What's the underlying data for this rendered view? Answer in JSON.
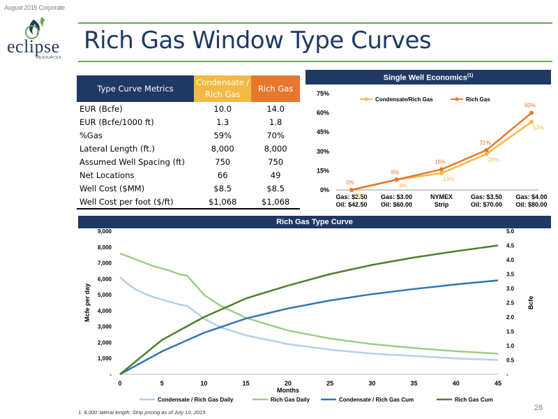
{
  "header": {
    "note": "August 2015 Corporate"
  },
  "logo": {
    "word": "eclipse",
    "sub": "RESOURCES"
  },
  "title": "Rich Gas Window Type Curves",
  "page_number": "26",
  "footnote": "1. 8,000' lateral length; Strip pricing as of July 10, 2015",
  "colors": {
    "navy": "#1f3864",
    "condensate_header": "#f4b942",
    "rich_header": "#e8772e",
    "green_rule": "#6aa84f"
  },
  "metrics_table": {
    "headers": [
      "Type Curve Metrics",
      "Condensate / Rich Gas",
      "Rich Gas"
    ],
    "rows": [
      {
        "label": "EUR (Bcfe)",
        "condensate": "10.0",
        "rich": "14.0"
      },
      {
        "label": "EUR (Bcfe/1000 ft)",
        "condensate": "1.3",
        "rich": "1.8"
      },
      {
        "label": "%Gas",
        "condensate": "59%",
        "rich": "70%"
      },
      {
        "label": "Lateral Length (ft.)",
        "condensate": "8,000",
        "rich": "8,000"
      },
      {
        "label": "Assumed Well Spacing (ft)",
        "condensate": "750",
        "rich": "750"
      },
      {
        "label": "Net Locations",
        "condensate": "66",
        "rich": "49"
      },
      {
        "label": "Well Cost ($MM)",
        "condensate": "$8.5",
        "rich": "$8.5"
      },
      {
        "label": "Well Cost per foot ($/ft)",
        "condensate": "$1,068",
        "rich": "$1,068"
      }
    ]
  },
  "chart_data": [
    {
      "type": "line",
      "title": "Single Well Economics",
      "title_sup": "(1)",
      "categories": [
        "Gas: $2.50\nOil: $42.50",
        "Gas: $3.00\nOil: $60.00",
        "NYMEX\nStrip",
        "Gas: $3.50\nOil: $70.00",
        "Gas: $4.00\nOil: $80.00"
      ],
      "series": [
        {
          "name": "Condensate/Rich Gas",
          "color": "#f4b942",
          "values": [
            0,
            8,
            13,
            28,
            53
          ],
          "labels": [
            "0%",
            "8%",
            "13%",
            "28%",
            "53%"
          ]
        },
        {
          "name": "Rich Gas",
          "color": "#e8772e",
          "values": [
            0,
            8,
            16,
            31,
            60
          ],
          "labels": [
            "0%",
            "8%",
            "16%",
            "31%",
            "60%"
          ]
        }
      ],
      "ylim": [
        0,
        75
      ],
      "yticks": [
        "0%",
        "15%",
        "30%",
        "45%",
        "60%",
        "75%"
      ],
      "legend": "top"
    },
    {
      "type": "line",
      "title": "Rich Gas Type Curve",
      "xlabel": "Months",
      "ylabel": "Mcfe per day",
      "y2label": "Bcfe",
      "xlim": [
        0,
        45
      ],
      "xticks": [
        "0",
        "5",
        "10",
        "15",
        "20",
        "25",
        "30",
        "35",
        "40",
        "45"
      ],
      "ylim": [
        0,
        9000
      ],
      "yticks": [
        "-",
        "1,000",
        "2,000",
        "3,000",
        "4,000",
        "5,000",
        "6,000",
        "7,000",
        "8,000",
        "9,000"
      ],
      "y2lim": [
        0,
        5
      ],
      "y2ticks": [
        "-",
        "0.5",
        "1.0",
        "1.5",
        "2.0",
        "2.5",
        "3.0",
        "3.5",
        "4.0",
        "4.5",
        "5.0"
      ],
      "legend": "bottom",
      "series": [
        {
          "name": "Condensate / Rich Gas Daily",
          "axis": "left",
          "color": "#b4cfe8",
          "x": [
            0,
            1,
            2,
            3,
            4,
            5,
            6,
            7,
            8,
            9,
            10,
            12,
            15,
            20,
            25,
            30,
            35,
            40,
            45
          ],
          "values": [
            6100,
            5650,
            5300,
            5050,
            4850,
            4700,
            4550,
            4400,
            4300,
            3900,
            3500,
            2950,
            2450,
            1900,
            1550,
            1300,
            1150,
            1000,
            900
          ]
        },
        {
          "name": "Rich Gas Daily",
          "axis": "left",
          "color": "#9bcf85",
          "x": [
            0,
            1,
            2,
            3,
            4,
            5,
            6,
            7,
            8,
            9,
            10,
            12,
            15,
            20,
            25,
            30,
            35,
            40,
            45
          ],
          "values": [
            7600,
            7400,
            7200,
            7000,
            6800,
            6650,
            6500,
            6300,
            6200,
            5600,
            5000,
            4300,
            3550,
            2750,
            2250,
            1900,
            1650,
            1450,
            1300
          ]
        },
        {
          "name": "Condensate / Rich Gas Cum",
          "axis": "right",
          "color": "#2e75b6",
          "x": [
            0,
            5,
            10,
            15,
            20,
            25,
            30,
            35,
            40,
            45
          ],
          "values": [
            0,
            0.8,
            1.45,
            1.95,
            2.3,
            2.58,
            2.8,
            2.98,
            3.14,
            3.28
          ]
        },
        {
          "name": "Rich Gas Cum",
          "axis": "right",
          "color": "#4b7f2e",
          "x": [
            0,
            5,
            10,
            15,
            20,
            25,
            30,
            35,
            40,
            45
          ],
          "values": [
            0,
            1.2,
            2.0,
            2.65,
            3.1,
            3.5,
            3.82,
            4.08,
            4.3,
            4.5
          ]
        }
      ]
    }
  ]
}
